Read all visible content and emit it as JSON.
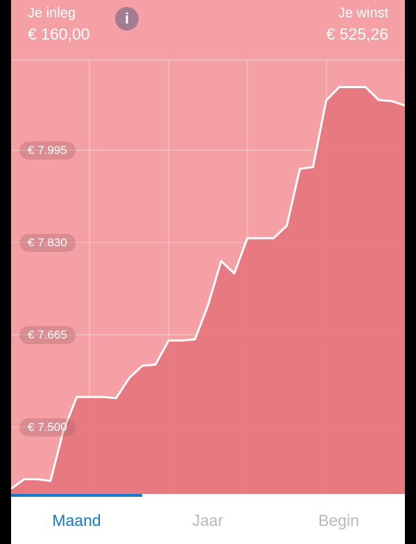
{
  "header": {
    "inleg_label": "Je inleg",
    "inleg_value": "€ 160,00",
    "winst_label": "Je winst",
    "winst_value": "€ 525,26",
    "info_icon": "i"
  },
  "chart_data": {
    "type": "area",
    "y_tick_labels": [
      "€ 7.995",
      "€ 7.830",
      "€ 7.665",
      "€ 7.500"
    ],
    "y_ticks": [
      7995,
      7830,
      7665,
      7500
    ],
    "ylim": [
      7378,
      8157
    ],
    "line_color": "#ffffff",
    "fill_color": "#e5757c",
    "grid": true,
    "series": [
      {
        "values": [
          7390,
          7407,
          7407,
          7404,
          7495,
          7554,
          7554,
          7554,
          7552,
          7588,
          7610,
          7612,
          7655,
          7655,
          7657,
          7718,
          7797,
          7775,
          7838,
          7838,
          7838,
          7860,
          7962,
          7965,
          8084,
          8108,
          8108,
          8108,
          8085,
          8083,
          8075
        ]
      }
    ]
  },
  "tabs": [
    {
      "label": "Maand",
      "active": true
    },
    {
      "label": "Jaar",
      "active": false
    },
    {
      "label": "Begin",
      "active": false
    }
  ],
  "colors": {
    "background": "#f4a0a4",
    "accent": "#1479c9",
    "info_button": "#a57b92"
  }
}
